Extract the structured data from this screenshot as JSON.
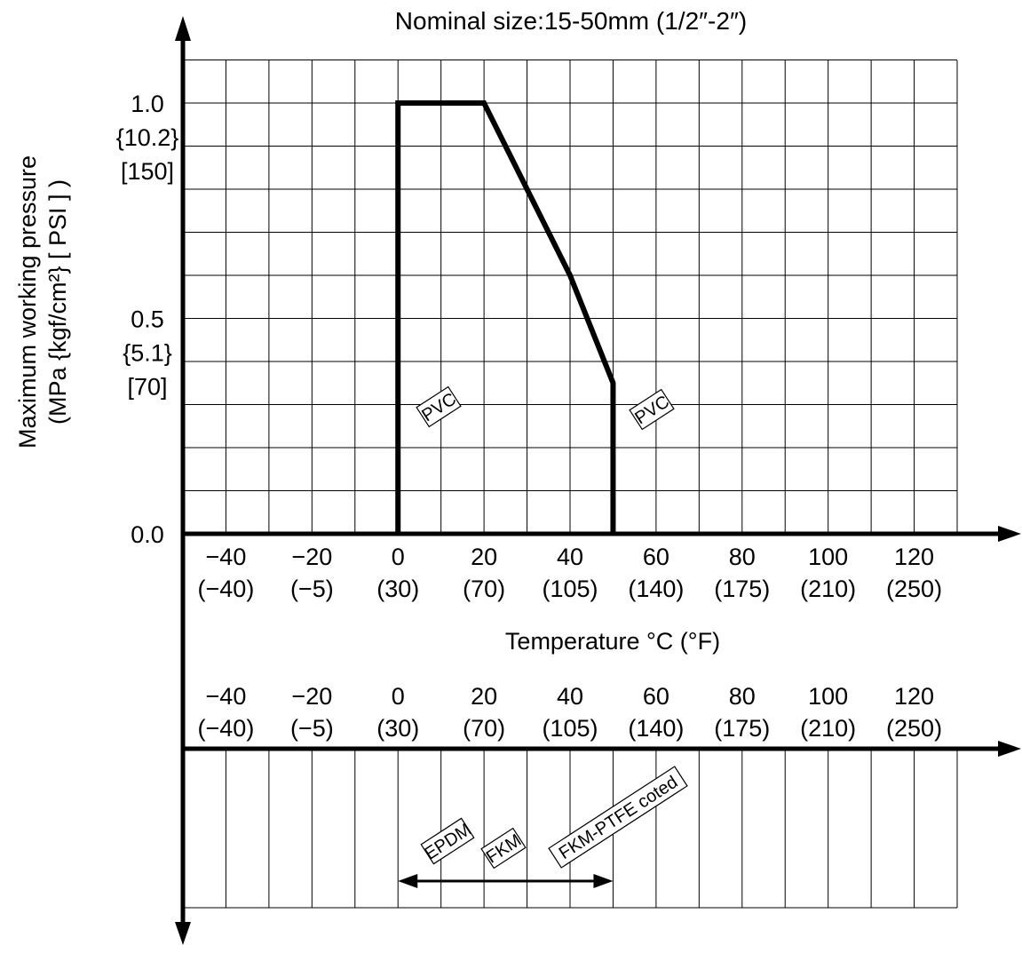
{
  "chart_data": [
    {
      "type": "line",
      "title": "Nominal size:15-50mm (1/2″-2″)",
      "ylabel_lines": [
        "Maximum working pressure",
        "(MPa {kgf/cm²} [ PSI ] )"
      ],
      "xlabel": "Temperature °C (°F)",
      "xlim": [
        -50,
        130
      ],
      "ylim": [
        0,
        1.2
      ],
      "grid": true,
      "x_ticks": [
        {
          "c": "−40",
          "f": "(−40)"
        },
        {
          "c": "−20",
          "f": "(−5)"
        },
        {
          "c": "0",
          "f": "(30)"
        },
        {
          "c": "20",
          "f": "(70)"
        },
        {
          "c": "40",
          "f": "(105)"
        },
        {
          "c": "60",
          "f": "(140)"
        },
        {
          "c": "80",
          "f": "(175)"
        },
        {
          "c": "100",
          "f": "(210)"
        },
        {
          "c": "120",
          "f": "(250)"
        }
      ],
      "x_tick_values": [
        -40,
        -20,
        0,
        20,
        40,
        60,
        80,
        100,
        120
      ],
      "y_ticks": [
        {
          "value": 1.0,
          "lines": [
            "1.0",
            "{10.2}",
            "[150]"
          ]
        },
        {
          "value": 0.5,
          "lines": [
            "0.5",
            "{5.1}",
            "[70]"
          ]
        },
        {
          "value": 0.0,
          "lines": [
            "0.0"
          ]
        }
      ],
      "series": [
        {
          "name": "PVC",
          "x": [
            0,
            0,
            20,
            30,
            40,
            50,
            50
          ],
          "y": [
            0,
            1.0,
            1.0,
            0.8,
            0.6,
            0.35,
            0
          ]
        }
      ],
      "annotations": [
        {
          "text": "PVC",
          "x": 5,
          "y": 0.3
        },
        {
          "text": "PVC",
          "x": 56,
          "y": 0.3
        }
      ]
    },
    {
      "type": "range",
      "xlim": [
        -50,
        130
      ],
      "x_ticks": [
        {
          "c": "−40",
          "f": "(−40)"
        },
        {
          "c": "−20",
          "f": "(−5)"
        },
        {
          "c": "0",
          "f": "(30)"
        },
        {
          "c": "20",
          "f": "(70)"
        },
        {
          "c": "40",
          "f": "(105)"
        },
        {
          "c": "60",
          "f": "(140)"
        },
        {
          "c": "80",
          "f": "(175)"
        },
        {
          "c": "100",
          "f": "(210)"
        },
        {
          "c": "120",
          "f": "(250)"
        }
      ],
      "range": {
        "from": 0,
        "to": 50
      },
      "materials": [
        "EPDM",
        "FKM",
        "FKM-PTFE coted"
      ]
    }
  ]
}
